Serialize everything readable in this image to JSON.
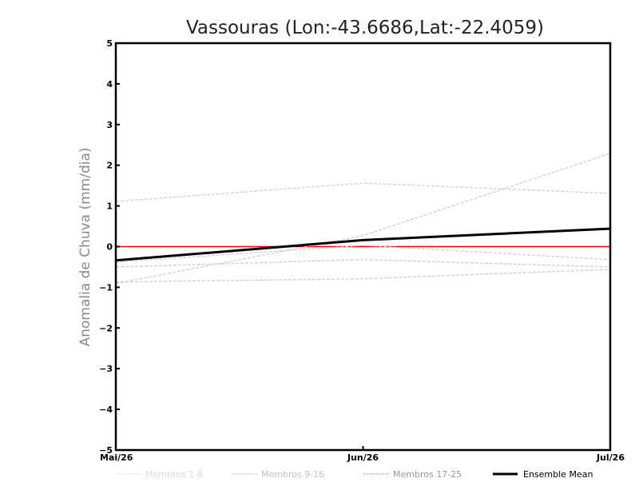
{
  "chart_data": {
    "type": "line",
    "title": "Vassouras (Lon:-43.6686,Lat:-22.4059)",
    "xlabel": "",
    "ylabel": "Anomalia de Chuva (mm/dia)",
    "categories": [
      "Mai/26",
      "Jun/26",
      "Jul/26"
    ],
    "ylim": [
      -5,
      5
    ],
    "yticks": [
      -5,
      -4,
      -3,
      -2,
      -1,
      0,
      1,
      2,
      3,
      4,
      5
    ],
    "grid": false,
    "reference_line": {
      "y": 0,
      "color": "#ff0000"
    },
    "series": [
      {
        "name": "member",
        "group": "Membros 1-8",
        "values": [
          1.11,
          1.56,
          1.31
        ],
        "color": "#d0d0d0"
      },
      {
        "name": "member",
        "group": "Membros 9-16",
        "values": [
          -0.91,
          0.27,
          2.29
        ],
        "color": "#cfcfcf"
      },
      {
        "name": "member",
        "group": "Membros 9-16",
        "values": [
          -0.38,
          0.03,
          -0.32
        ],
        "color": "#cfcfcf"
      },
      {
        "name": "member",
        "group": "Membros 17-25",
        "values": [
          -0.5,
          -0.32,
          -0.5
        ],
        "color": "#cccccc"
      },
      {
        "name": "member",
        "group": "Membros 17-25",
        "values": [
          -0.87,
          -0.79,
          -0.56
        ],
        "color": "#cccccc"
      },
      {
        "name": "Ensemble Mean",
        "values": [
          -0.34,
          0.16,
          0.44
        ],
        "color": "#000000"
      }
    ],
    "legend": {
      "placement": "bottom",
      "entries": [
        {
          "label": "Membros 1-8",
          "color": "#d8d8d8",
          "style": "dashed"
        },
        {
          "label": "Membros 9-16",
          "color": "#c0c0c0",
          "style": "dashed"
        },
        {
          "label": "Membros 17-25",
          "color": "#999999",
          "style": "dashed"
        },
        {
          "label": "Ensemble Mean",
          "color": "#000000",
          "style": "solid"
        }
      ]
    }
  }
}
